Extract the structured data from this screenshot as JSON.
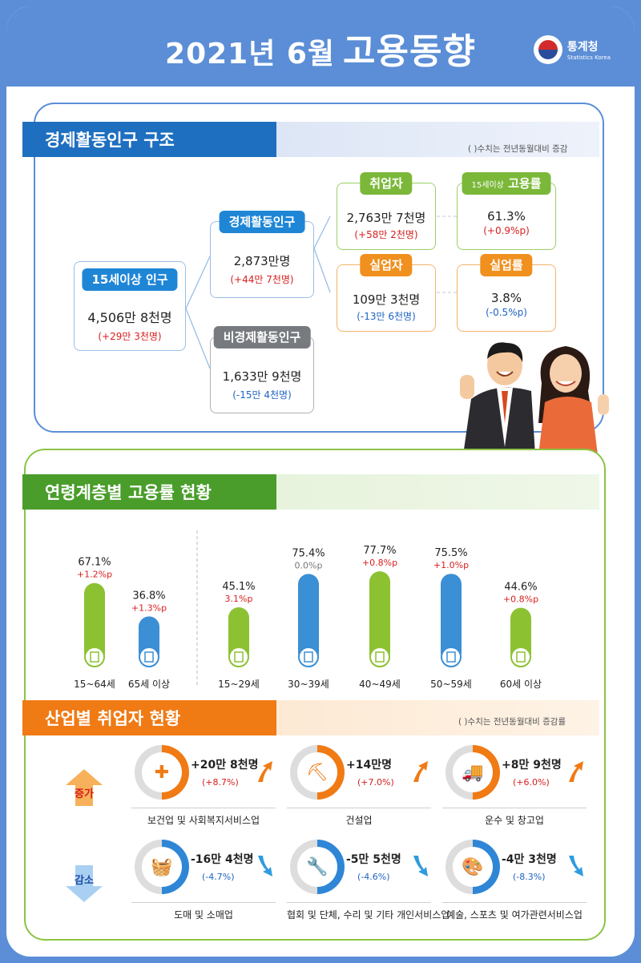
{
  "header": {
    "title_prefix": "2021년  6월",
    "title_main": "고용동향",
    "logo_ko": "통계청",
    "logo_en": "Statistics Korea"
  },
  "section1": {
    "title": "경제활동인구 구조",
    "note": "( )수치는 전년동월대비 증감",
    "pop15": {
      "label": "15세이상 인구",
      "value": "4,506만 8천명",
      "change": "(+29만 3천명)"
    },
    "econ_active": {
      "label": "경제활동인구",
      "value": "2,873만명",
      "change": "(+44만 7천명)"
    },
    "non_active": {
      "label": "비경제활동인구",
      "value": "1,633만 9천명",
      "change": "(-15만 4천명)"
    },
    "employed": {
      "label": "취업자",
      "value": "2,763만 7천명",
      "change": "(+58만 2천명)"
    },
    "unemployed": {
      "label": "실업자",
      "value": "109만 3천명",
      "change": "(-13만 6천명)"
    },
    "emp_rate": {
      "label_small": "15세이상",
      "label": "고용률",
      "value": "61.3%",
      "change": "(+0.9%p)"
    },
    "unemp_rate": {
      "label": "실업률",
      "value": "3.8%",
      "change": "(-0.5%p)"
    }
  },
  "section2": {
    "title": "연령계층별 고용률 현황"
  },
  "chart_data": {
    "type": "bar",
    "categories": [
      "15~64세",
      "65세 이상",
      "15~29세",
      "30~39세",
      "40~49세",
      "50~59세",
      "60세 이상"
    ],
    "values": [
      67.1,
      36.8,
      45.1,
      75.4,
      77.7,
      75.5,
      44.6
    ],
    "value_labels": [
      "67.1%",
      "36.8%",
      "45.1%",
      "75.4%",
      "77.7%",
      "75.5%",
      "44.6%"
    ],
    "changes": [
      "+1.2%p",
      "+1.3%p",
      "3.1%p",
      "0.0%p",
      "+0.8%p",
      "+1.0%p",
      "+0.8%p"
    ],
    "bar_colors": [
      "#8cc232",
      "#3b8fd4",
      "#8cc232",
      "#3b8fd4",
      "#8cc232",
      "#3b8fd4",
      "#8cc232"
    ],
    "change_colors": [
      "#d71e1e",
      "#d71e1e",
      "#d71e1e",
      "#777777",
      "#d71e1e",
      "#d71e1e",
      "#d71e1e"
    ],
    "groups": [
      [
        0,
        1
      ],
      [
        2,
        3,
        4,
        5,
        6
      ]
    ]
  },
  "section3": {
    "title": "산업별 취업자 현황",
    "note": "( )수치는 전년동월대비 증감률",
    "increase_label": "증가",
    "decrease_label": "감소",
    "increase": [
      {
        "amount": "+20만 8천명",
        "pct": "(+8.7%)",
        "name": "보건업 및 사회복지서비스업",
        "icon": "medical-kit-icon",
        "glyph": "✚"
      },
      {
        "amount": "+14만명",
        "pct": "(+7.0%)",
        "name": "건설업",
        "icon": "excavator-icon",
        "glyph": "⛏"
      },
      {
        "amount": "+8만 9천명",
        "pct": "(+6.0%)",
        "name": "운수 및 창고업",
        "icon": "truck-icon",
        "glyph": "🚚"
      }
    ],
    "decrease": [
      {
        "amount": "-16만 4천명",
        "pct": "(-4.7%)",
        "name": "도매 및 소매업",
        "icon": "shopping-basket-icon",
        "glyph": "🧺"
      },
      {
        "amount": "-5만 5천명",
        "pct": "(-4.6%)",
        "name": "협회 및 단체, 수리 및 기타 개인서비스업",
        "icon": "wrench-icon",
        "glyph": "🔧"
      },
      {
        "amount": "-4만 3천명",
        "pct": "(-8.3%)",
        "name": "예술, 스포츠 및 여가관련서비스업",
        "icon": "palette-icon",
        "glyph": "🎨"
      }
    ],
    "colors": {
      "increase": "#f07a14",
      "decrease": "#2f86d6",
      "up_arrow": "#f07a14",
      "down_arrow": "#2f9be0"
    }
  }
}
